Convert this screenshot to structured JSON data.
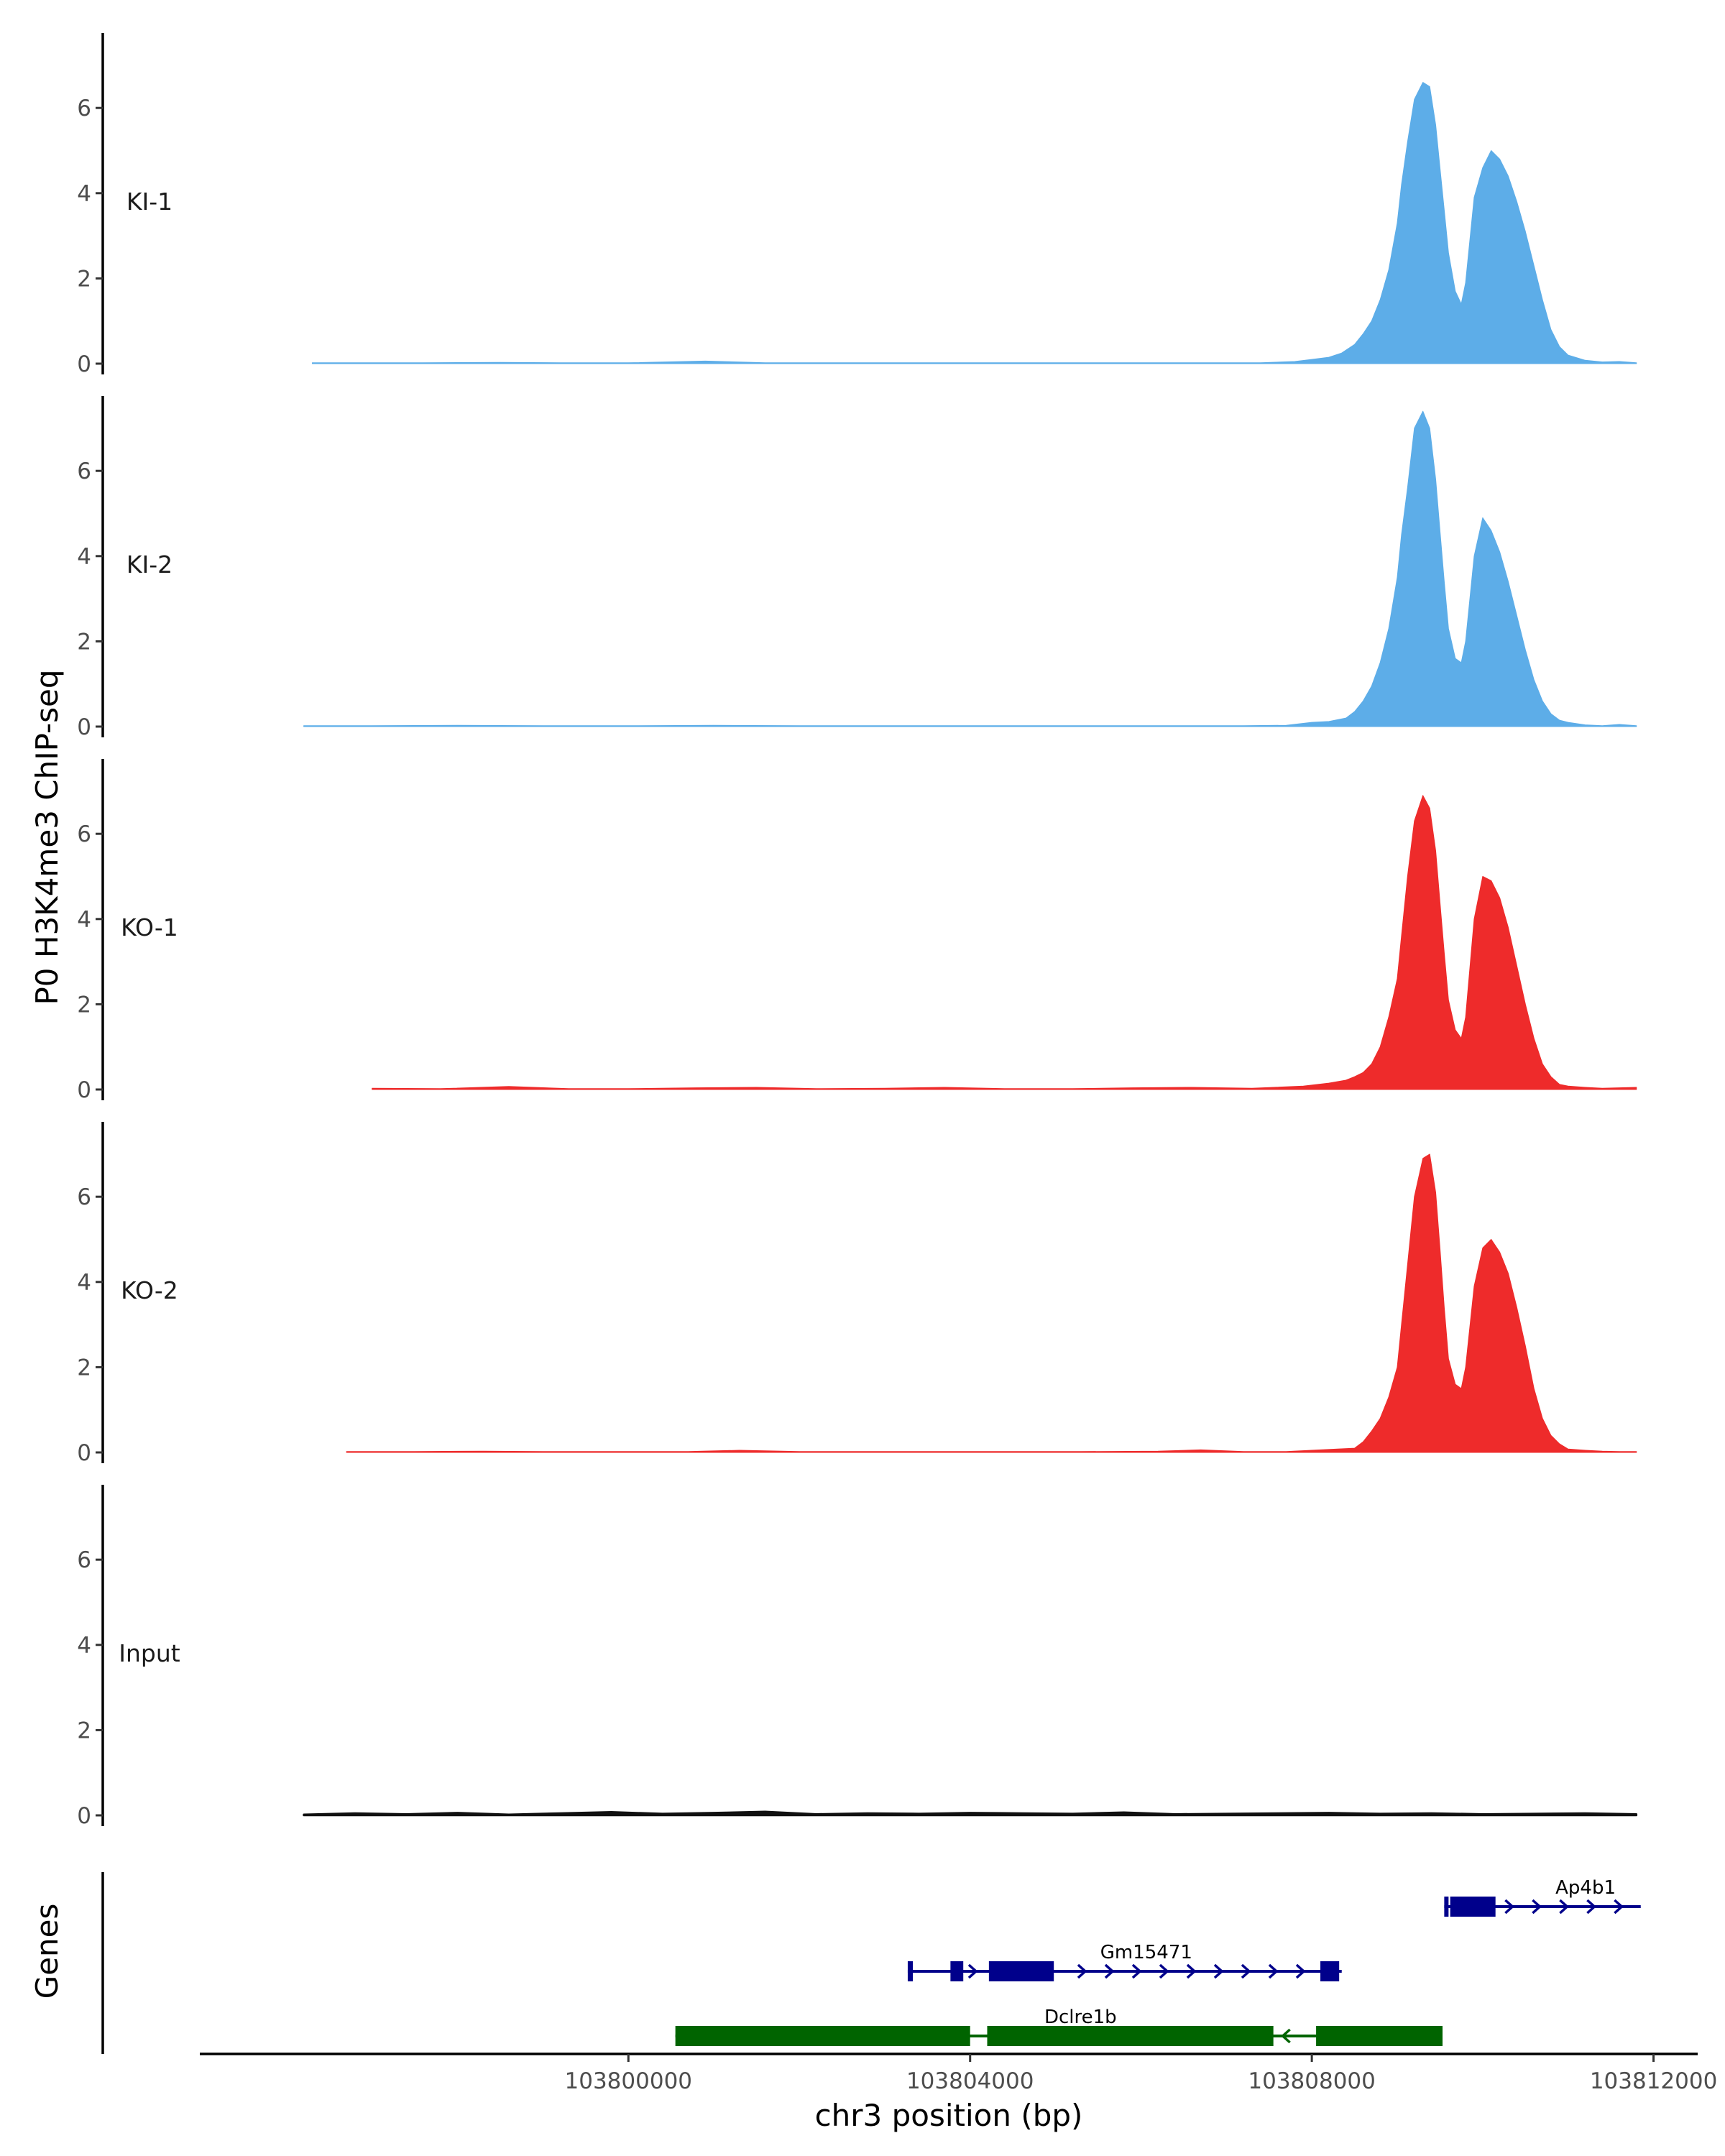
{
  "chart_data": {
    "type": "area",
    "ylabel": "P0 H3K4me3 ChIP-seq",
    "xlabel": "chr3 position (bp)",
    "genes_label": "Genes",
    "xlim": [
      103795000,
      103812500
    ],
    "xticks": [
      {
        "value": 103800000,
        "label": "103800000"
      },
      {
        "value": 103804000,
        "label": "103804000"
      },
      {
        "value": 103808000,
        "label": "103808000"
      },
      {
        "value": 103812000,
        "label": "103812000"
      }
    ],
    "ylim": [
      0,
      8
    ],
    "yticks": [
      {
        "value": 0,
        "label": "0"
      },
      {
        "value": 2,
        "label": "2"
      },
      {
        "value": 4,
        "label": "4"
      },
      {
        "value": 6,
        "label": "6"
      }
    ],
    "tracks": [
      {
        "name": "KI-1",
        "color": "#5dade8",
        "x": [
          103796300,
          103797600,
          103798500,
          103799200,
          103800000,
          103800900,
          103801600,
          103802000,
          103802600,
          103803200,
          103803800,
          103804500,
          103805200,
          103805800,
          103806400,
          103807000,
          103807400,
          103807800,
          103808000,
          103808200,
          103808350,
          103808500,
          103808600,
          103808700,
          103808800,
          103808900,
          103809000,
          103809050,
          103809120,
          103809200,
          103809300,
          103809380,
          103809450,
          103809500,
          103809550,
          103809600,
          103809680,
          103809750,
          103809800,
          103809900,
          103810000,
          103810100,
          103810200,
          103810300,
          103810400,
          103810500,
          103810600,
          103810700,
          103810800,
          103810900,
          103811000,
          103811200,
          103811400,
          103811600,
          103811800
        ],
        "y": [
          0.02,
          0.01,
          0.03,
          0.01,
          0.02,
          0.06,
          0.02,
          0.01,
          0.01,
          0.02,
          0.01,
          0.02,
          0.01,
          0.02,
          0.01,
          0.02,
          0.01,
          0.05,
          0.1,
          0.15,
          0.25,
          0.45,
          0.7,
          1.0,
          1.5,
          2.2,
          3.3,
          4.2,
          5.2,
          6.2,
          6.6,
          6.5,
          5.6,
          4.6,
          3.6,
          2.6,
          1.7,
          1.4,
          1.9,
          3.9,
          4.6,
          5.0,
          4.8,
          4.4,
          3.8,
          3.1,
          2.3,
          1.5,
          0.8,
          0.4,
          0.2,
          0.08,
          0.04,
          0.05,
          0.01
        ]
      },
      {
        "name": "KI-2",
        "color": "#5dade8",
        "x": [
          103796200,
          103797000,
          103798000,
          103799000,
          103800000,
          103801000,
          103802000,
          103802700,
          103803500,
          103804500,
          103805000,
          103805800,
          103806500,
          103807200,
          103807700,
          103808000,
          103808200,
          103808400,
          103808500,
          103808600,
          103808700,
          103808800,
          103808900,
          103809000,
          103809050,
          103809120,
          103809200,
          103809300,
          103809380,
          103809450,
          103809500,
          103809550,
          103809600,
          103809680,
          103809750,
          103809800,
          103809900,
          103810000,
          103810100,
          103810200,
          103810300,
          103810400,
          103810500,
          103810600,
          103810700,
          103810800,
          103810900,
          103811000,
          103811200,
          103811400,
          103811600,
          103811800
        ],
        "y": [
          0.01,
          0.02,
          0.03,
          0.02,
          0.01,
          0.03,
          0.02,
          0.01,
          0.02,
          0.01,
          0.02,
          0.01,
          0.02,
          0.01,
          0.03,
          0.1,
          0.12,
          0.2,
          0.35,
          0.6,
          0.95,
          1.5,
          2.3,
          3.5,
          4.5,
          5.6,
          7.0,
          7.4,
          7.0,
          5.8,
          4.6,
          3.4,
          2.3,
          1.6,
          1.5,
          2.0,
          4.0,
          4.9,
          4.6,
          4.1,
          3.4,
          2.6,
          1.8,
          1.1,
          0.6,
          0.3,
          0.15,
          0.1,
          0.04,
          0.02,
          0.05,
          0.02
        ]
      },
      {
        "name": "KO-1",
        "color": "#ee2b2b",
        "x": [
          103797000,
          103797800,
          103798600,
          103799300,
          103800000,
          103800800,
          103801500,
          103802200,
          103803000,
          103803700,
          103804400,
          103805200,
          103805900,
          103806600,
          103807300,
          103807900,
          103808200,
          103808400,
          103808500,
          103808600,
          103808700,
          103808800,
          103808900,
          103809000,
          103809050,
          103809120,
          103809200,
          103809300,
          103809380,
          103809450,
          103809500,
          103809550,
          103809600,
          103809680,
          103809750,
          103809800,
          103809900,
          103810000,
          103810100,
          103810200,
          103810300,
          103810400,
          103810500,
          103810600,
          103810700,
          103810800,
          103810900,
          103811000,
          103811200,
          103811400,
          103811600,
          103811800
        ],
        "y": [
          0.03,
          0.01,
          0.07,
          0.02,
          0.01,
          0.04,
          0.05,
          0.01,
          0.03,
          0.05,
          0.01,
          0.02,
          0.04,
          0.05,
          0.03,
          0.08,
          0.15,
          0.22,
          0.3,
          0.4,
          0.6,
          1.0,
          1.7,
          2.6,
          3.6,
          5.0,
          6.3,
          6.9,
          6.6,
          5.6,
          4.4,
          3.2,
          2.1,
          1.4,
          1.2,
          1.7,
          4.0,
          5.0,
          4.9,
          4.5,
          3.8,
          2.9,
          2.0,
          1.2,
          0.6,
          0.3,
          0.12,
          0.08,
          0.05,
          0.03,
          0.04,
          0.05
        ]
      },
      {
        "name": "KO-2",
        "color": "#ee2b2b",
        "x": [
          103796700,
          103797500,
          103798300,
          103799000,
          103800000,
          103800700,
          103801300,
          103802000,
          103802800,
          103803600,
          103804400,
          103805300,
          103806200,
          103806700,
          103807200,
          103807700,
          103808000,
          103808300,
          103808500,
          103808600,
          103808700,
          103808800,
          103808900,
          103809000,
          103809050,
          103809120,
          103809200,
          103809300,
          103809380,
          103809450,
          103809500,
          103809550,
          103809600,
          103809680,
          103809750,
          103809800,
          103809900,
          103810000,
          103810100,
          103810200,
          103810300,
          103810400,
          103810500,
          103810600,
          103810700,
          103810800,
          103810900,
          103811000,
          103811200,
          103811400,
          103811600,
          103811800
        ],
        "y": [
          0.01,
          0.02,
          0.03,
          0.02,
          0.01,
          0.02,
          0.05,
          0.01,
          0.02,
          0.01,
          0.02,
          0.01,
          0.03,
          0.06,
          0.02,
          0.01,
          0.05,
          0.08,
          0.1,
          0.25,
          0.5,
          0.8,
          1.3,
          2.0,
          3.0,
          4.4,
          6.0,
          6.9,
          7.0,
          6.1,
          4.8,
          3.4,
          2.2,
          1.6,
          1.5,
          2.0,
          3.9,
          4.8,
          5.0,
          4.7,
          4.2,
          3.4,
          2.5,
          1.5,
          0.8,
          0.4,
          0.2,
          0.08,
          0.05,
          0.03,
          0.02,
          0.01
        ]
      },
      {
        "name": "Input",
        "color": "#111111",
        "x": [
          103796200,
          103796800,
          103797400,
          103798000,
          103798600,
          103799200,
          103799800,
          103800400,
          103801000,
          103801600,
          103802200,
          103802800,
          103803400,
          103804000,
          103804600,
          103805200,
          103805800,
          103806400,
          103807000,
          103807600,
          103808200,
          103808800,
          103809400,
          103810000,
          103810600,
          103811200,
          103811800
        ],
        "y": [
          0.02,
          0.05,
          0.03,
          0.06,
          0.02,
          0.05,
          0.08,
          0.04,
          0.06,
          0.09,
          0.03,
          0.05,
          0.04,
          0.06,
          0.05,
          0.04,
          0.07,
          0.03,
          0.04,
          0.05,
          0.06,
          0.04,
          0.05,
          0.03,
          0.04,
          0.05,
          0.03
        ]
      }
    ],
    "genes": [
      {
        "name": "Ap4b1",
        "strand": "+",
        "color": "#00008b",
        "row": 0,
        "start": 103809550,
        "end": 103811850,
        "exons": [
          [
            103809550,
            103809580
          ],
          [
            103809620,
            103810150
          ]
        ]
      },
      {
        "name": "Gm15471",
        "strand": "+",
        "color": "#00008b",
        "row": 1,
        "start": 103803270,
        "end": 103808350,
        "exons": [
          [
            103803270,
            103803330
          ],
          [
            103803770,
            103803920
          ],
          [
            103804220,
            103804980
          ],
          [
            103808100,
            103808320
          ]
        ]
      },
      {
        "name": "Dclre1b",
        "strand": "-",
        "color": "#006400",
        "row": 2,
        "start": 103800550,
        "end": 103809530,
        "exons": [
          [
            103800550,
            103804000
          ],
          [
            103804200,
            103807550
          ],
          [
            103808050,
            103809530
          ]
        ]
      }
    ]
  }
}
